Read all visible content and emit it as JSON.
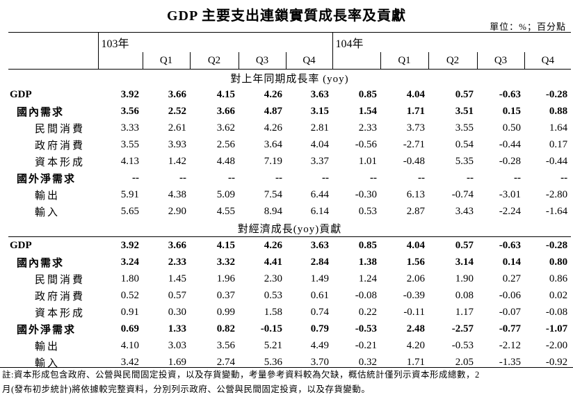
{
  "title": "GDP 主要支出連鎖實質成長率及貢獻",
  "unit": "單位：%；百分點",
  "header": {
    "year103": "103年",
    "year104": "104年",
    "q103": [
      "Q1",
      "Q2",
      "Q3",
      "Q4"
    ],
    "q104": [
      "Q1",
      "Q2",
      "Q3",
      "Q4"
    ]
  },
  "section1": {
    "title": "對上年同期成長率 (yoy)",
    "rows": [
      {
        "label": "GDP",
        "level": 0,
        "values": [
          "3.92",
          "3.66",
          "4.15",
          "4.26",
          "3.63",
          "0.85",
          "4.04",
          "0.57",
          "-0.63",
          "-0.28"
        ]
      },
      {
        "label": "國內需求",
        "level": 1,
        "values": [
          "3.56",
          "2.52",
          "3.66",
          "4.87",
          "3.15",
          "1.54",
          "1.71",
          "3.51",
          "0.15",
          "0.88"
        ]
      },
      {
        "label": "民間消費",
        "level": 2,
        "values": [
          "3.33",
          "2.61",
          "3.62",
          "4.26",
          "2.81",
          "2.33",
          "3.73",
          "3.55",
          "0.50",
          "1.64"
        ]
      },
      {
        "label": "政府消費",
        "level": 2,
        "values": [
          "3.55",
          "3.93",
          "2.56",
          "3.64",
          "4.04",
          "-0.56",
          "-2.71",
          "0.54",
          "-0.44",
          "0.17"
        ]
      },
      {
        "label": "資本形成",
        "level": 2,
        "values": [
          "4.13",
          "1.42",
          "4.48",
          "7.19",
          "3.37",
          "1.01",
          "-0.48",
          "5.35",
          "-0.28",
          "-0.44"
        ]
      },
      {
        "label": "國外淨需求",
        "level": 1,
        "values": [
          "--",
          "--",
          "--",
          "--",
          "--",
          "--",
          "--",
          "--",
          "--",
          "--"
        ]
      },
      {
        "label": "輸出",
        "level": 2,
        "values": [
          "5.91",
          "4.38",
          "5.09",
          "7.54",
          "6.44",
          "-0.30",
          "6.13",
          "-0.74",
          "-3.01",
          "-2.80"
        ]
      },
      {
        "label": "輸入",
        "level": 2,
        "values": [
          "5.65",
          "2.90",
          "4.55",
          "8.94",
          "6.14",
          "0.53",
          "2.87",
          "3.43",
          "-2.24",
          "-1.64"
        ]
      }
    ]
  },
  "section2": {
    "title": "對經濟成長(yoy)貢獻",
    "rows": [
      {
        "label": "GDP",
        "level": 0,
        "values": [
          "3.92",
          "3.66",
          "4.15",
          "4.26",
          "3.63",
          "0.85",
          "4.04",
          "0.57",
          "-0.63",
          "-0.28"
        ]
      },
      {
        "label": "國內需求",
        "level": 1,
        "values": [
          "3.24",
          "2.33",
          "3.32",
          "4.41",
          "2.84",
          "1.38",
          "1.56",
          "3.14",
          "0.14",
          "0.80"
        ]
      },
      {
        "label": "民間消費",
        "level": 2,
        "values": [
          "1.80",
          "1.45",
          "1.96",
          "2.30",
          "1.49",
          "1.24",
          "2.06",
          "1.90",
          "0.27",
          "0.86"
        ]
      },
      {
        "label": "政府消費",
        "level": 2,
        "values": [
          "0.52",
          "0.57",
          "0.37",
          "0.53",
          "0.61",
          "-0.08",
          "-0.39",
          "0.08",
          "-0.06",
          "0.02"
        ]
      },
      {
        "label": "資本形成",
        "level": 2,
        "values": [
          "0.91",
          "0.30",
          "0.99",
          "1.58",
          "0.74",
          "0.22",
          "-0.11",
          "1.17",
          "-0.07",
          "-0.08"
        ]
      },
      {
        "label": "國外淨需求",
        "level": 1,
        "values": [
          "0.69",
          "1.33",
          "0.82",
          "-0.15",
          "0.79",
          "-0.53",
          "2.48",
          "-2.57",
          "-0.77",
          "-1.07"
        ]
      },
      {
        "label": "輸出",
        "level": 2,
        "values": [
          "4.10",
          "3.03",
          "3.56",
          "5.21",
          "4.49",
          "-0.21",
          "4.20",
          "-0.53",
          "-2.12",
          "-2.00"
        ]
      },
      {
        "label": "輸入",
        "level": 2,
        "values": [
          "3.42",
          "1.69",
          "2.74",
          "5.36",
          "3.70",
          "0.32",
          "1.71",
          "2.05",
          "-1.35",
          "-0.92"
        ]
      }
    ]
  },
  "note": {
    "line1": "註:資本形成包含政府、公營與民間固定投資，以及存貨變動，考量參考資料較為欠缺，概估統計僅列示資本形成總數，2",
    "line2": "月(發布初步統計)將依據較完整資料，分別列示政府、公營與民間固定投資，以及存貨變動。"
  }
}
